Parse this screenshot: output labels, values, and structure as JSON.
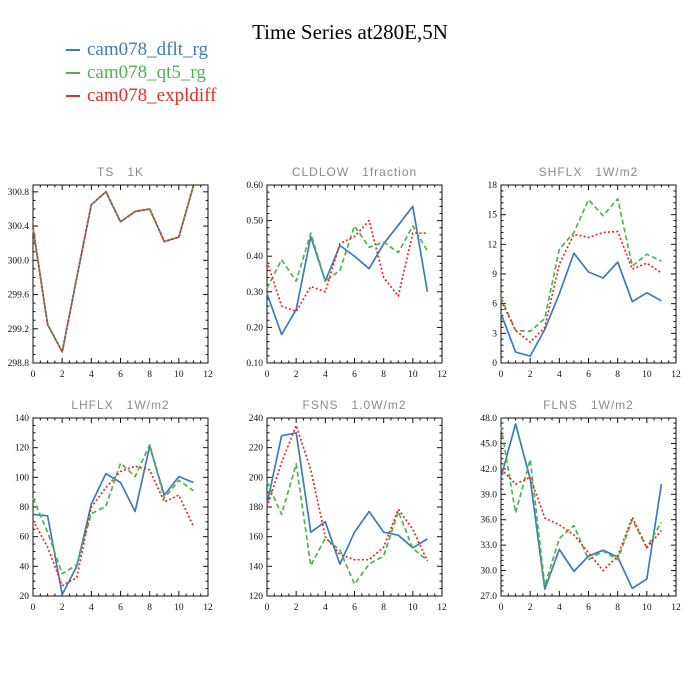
{
  "title": "Time Series at280E,5N",
  "colors": {
    "blue": "#3d7cb8",
    "green": "#4eb44e",
    "red": "#ec2a25"
  },
  "legend": {
    "items": [
      {
        "label": "cam078_dflt_rg",
        "color": "#3d7cb8"
      },
      {
        "label": "cam078_qt5_rg",
        "color": "#4eb44e"
      },
      {
        "label": "cam078_expldiff",
        "color": "#ec2a25"
      }
    ]
  },
  "chart_data": [
    {
      "type": "line",
      "title": "TS   1K",
      "var": "TS",
      "units": "1K",
      "x": [
        0,
        1,
        2,
        3,
        4,
        5,
        6,
        7,
        8,
        9,
        10,
        11
      ],
      "xlim": [
        0,
        12
      ],
      "xticks": [
        0,
        2,
        4,
        6,
        8,
        10,
        12
      ],
      "x_minor_step": 0.5,
      "ylim": [
        298.8,
        300.88
      ],
      "yticks": [
        298.8,
        299.2,
        299.6,
        300.0,
        300.4,
        300.8
      ],
      "y_minor_step": 0.1,
      "tick_decimals": 1,
      "grid": false,
      "legend_position": "top-left-of-page",
      "series": [
        {
          "name": "cam078_dflt_rg",
          "color": "#3d7cb8",
          "style": "solid",
          "values": [
            300.38,
            299.25,
            298.93,
            299.8,
            300.65,
            300.8,
            300.45,
            300.57,
            300.6,
            300.22,
            300.27,
            300.87
          ]
        },
        {
          "name": "cam078_qt5_rg",
          "color": "#4eb44e",
          "style": "dashed",
          "values": [
            300.38,
            299.25,
            298.93,
            299.8,
            300.65,
            300.8,
            300.45,
            300.57,
            300.6,
            300.22,
            300.27,
            300.87
          ]
        },
        {
          "name": "cam078_expldiff",
          "color": "#ec2a25",
          "style": "dotted",
          "values": [
            300.38,
            299.25,
            298.93,
            299.8,
            300.65,
            300.8,
            300.45,
            300.57,
            300.6,
            300.22,
            300.27,
            300.87
          ]
        }
      ]
    },
    {
      "type": "line",
      "title": "CLDLOW   1fraction",
      "var": "CLDLOW",
      "units": "1fraction",
      "x": [
        0,
        1,
        2,
        3,
        4,
        5,
        6,
        7,
        8,
        9,
        10,
        11
      ],
      "xlim": [
        0,
        12
      ],
      "xticks": [
        0,
        2,
        4,
        6,
        8,
        10,
        12
      ],
      "x_minor_step": 0.5,
      "ylim": [
        0.1,
        0.6
      ],
      "yticks": [
        0.1,
        0.2,
        0.3,
        0.4,
        0.5,
        0.6
      ],
      "y_minor_step": 0.02,
      "tick_decimals": 2,
      "grid": false,
      "series": [
        {
          "name": "cam078_dflt_rg",
          "color": "#3d7cb8",
          "style": "solid",
          "values": [
            0.295,
            0.18,
            0.25,
            0.455,
            0.33,
            0.43,
            0.4,
            0.365,
            0.435,
            0.487,
            0.54,
            0.3
          ]
        },
        {
          "name": "cam078_qt5_rg",
          "color": "#4eb44e",
          "style": "dashed",
          "values": [
            0.31,
            0.39,
            0.33,
            0.465,
            0.33,
            0.36,
            0.485,
            0.425,
            0.44,
            0.41,
            0.485,
            0.415
          ]
        },
        {
          "name": "cam078_expldiff",
          "color": "#ec2a25",
          "style": "dotted",
          "values": [
            0.385,
            0.26,
            0.245,
            0.315,
            0.3,
            0.435,
            0.455,
            0.5,
            0.34,
            0.288,
            0.465,
            0.465
          ]
        }
      ]
    },
    {
      "type": "line",
      "title": "SHFLX   1W/m2",
      "var": "SHFLX",
      "units": "1W/m2",
      "x": [
        0,
        1,
        2,
        3,
        4,
        5,
        6,
        7,
        8,
        9,
        10,
        11
      ],
      "xlim": [
        0,
        12
      ],
      "xticks": [
        0,
        2,
        4,
        6,
        8,
        10,
        12
      ],
      "x_minor_step": 0.5,
      "ylim": [
        0,
        18
      ],
      "yticks": [
        0,
        3,
        6,
        9,
        12,
        15,
        18
      ],
      "y_minor_step": 0.6,
      "tick_decimals": 0,
      "grid": false,
      "series": [
        {
          "name": "cam078_dflt_rg",
          "color": "#3d7cb8",
          "style": "solid",
          "values": [
            5.0,
            1.1,
            0.7,
            3.4,
            7.0,
            11.1,
            9.2,
            8.6,
            10.2,
            6.2,
            7.1,
            6.3
          ]
        },
        {
          "name": "cam078_qt5_rg",
          "color": "#4eb44e",
          "style": "dashed",
          "values": [
            6.6,
            3.3,
            3.2,
            4.5,
            11.5,
            13.2,
            16.5,
            14.9,
            16.6,
            9.8,
            11.0,
            10.3
          ]
        },
        {
          "name": "cam078_expldiff",
          "color": "#ec2a25",
          "style": "dotted",
          "values": [
            6.3,
            3.3,
            2.1,
            3.6,
            10.0,
            13.0,
            12.7,
            13.2,
            13.3,
            9.5,
            10.1,
            9.1
          ]
        }
      ]
    },
    {
      "type": "line",
      "title": "LHFLX   1W/m2",
      "var": "LHFLX",
      "units": "1W/m2",
      "x": [
        0,
        1,
        2,
        3,
        4,
        5,
        6,
        7,
        8,
        9,
        10,
        11
      ],
      "xlim": [
        0,
        12
      ],
      "xticks": [
        0,
        2,
        4,
        6,
        8,
        10,
        12
      ],
      "x_minor_step": 0.5,
      "ylim": [
        20,
        140
      ],
      "yticks": [
        20,
        40,
        60,
        80,
        100,
        120,
        140
      ],
      "y_minor_step": 5,
      "tick_decimals": 0,
      "grid": false,
      "series": [
        {
          "name": "cam078_dflt_rg",
          "color": "#3d7cb8",
          "style": "solid",
          "values": [
            75,
            74,
            21,
            40,
            82,
            102.5,
            96.5,
            77,
            121,
            88,
            100.5,
            96.5
          ]
        },
        {
          "name": "cam078_qt5_rg",
          "color": "#4eb44e",
          "style": "dashed",
          "values": [
            86,
            63,
            35,
            41,
            75.5,
            80.5,
            109.5,
            100.5,
            122,
            86,
            98,
            91
          ]
        },
        {
          "name": "cam078_expldiff",
          "color": "#ec2a25",
          "style": "dotted",
          "values": [
            71,
            53,
            27,
            32.5,
            80,
            93,
            104,
            107.5,
            105,
            83.5,
            88,
            67
          ]
        }
      ]
    },
    {
      "type": "line",
      "title": "FSNS   1.0W/m2",
      "var": "FSNS",
      "units": "1.0W/m2",
      "x": [
        0,
        1,
        2,
        3,
        4,
        5,
        6,
        7,
        8,
        9,
        10,
        11
      ],
      "xlim": [
        0,
        12
      ],
      "xticks": [
        0,
        2,
        4,
        6,
        8,
        10,
        12
      ],
      "x_minor_step": 0.5,
      "ylim": [
        120,
        240
      ],
      "yticks": [
        120,
        140,
        160,
        180,
        200,
        220,
        240
      ],
      "y_minor_step": 5,
      "tick_decimals": 0,
      "grid": false,
      "series": [
        {
          "name": "cam078_dflt_rg",
          "color": "#3d7cb8",
          "style": "solid",
          "values": [
            182,
            228,
            230,
            163,
            170,
            141.5,
            163,
            177,
            163,
            161,
            152.5,
            158.5
          ]
        },
        {
          "name": "cam078_qt5_rg",
          "color": "#4eb44e",
          "style": "dashed",
          "values": [
            197,
            175,
            209,
            140.5,
            159,
            151,
            128,
            141.5,
            147,
            177,
            152,
            144
          ]
        },
        {
          "name": "cam078_expldiff",
          "color": "#ec2a25",
          "style": "dotted",
          "values": [
            180,
            210,
            235,
            205,
            160,
            148,
            144.5,
            144.5,
            153,
            178.5,
            165,
            143.5
          ]
        }
      ]
    },
    {
      "type": "line",
      "title": "FLNS   1W/m2",
      "var": "FLNS",
      "units": "1W/m2",
      "x": [
        0,
        1,
        2,
        3,
        4,
        5,
        6,
        7,
        8,
        9,
        10,
        11
      ],
      "xlim": [
        0,
        12
      ],
      "xticks": [
        0,
        2,
        4,
        6,
        8,
        10,
        12
      ],
      "x_minor_step": 0.5,
      "ylim": [
        27,
        48
      ],
      "yticks": [
        27.0,
        30.0,
        33.0,
        36.0,
        39.0,
        42.0,
        45.0,
        48.0
      ],
      "y_minor_step": 0.6,
      "tick_decimals": 1,
      "grid": false,
      "series": [
        {
          "name": "cam078_dflt_rg",
          "color": "#3d7cb8",
          "style": "solid",
          "values": [
            41.0,
            47.3,
            40.8,
            27.8,
            32.5,
            29.9,
            31.7,
            32.4,
            31.6,
            27.9,
            29.0,
            40.2
          ]
        },
        {
          "name": "cam078_qt5_rg",
          "color": "#4eb44e",
          "style": "dashed",
          "values": [
            47.0,
            36.8,
            43.1,
            28.2,
            33.8,
            35.3,
            31.3,
            32.3,
            31.3,
            36.0,
            32.7,
            35.7
          ]
        },
        {
          "name": "cam078_expldiff",
          "color": "#ec2a25",
          "style": "dotted",
          "values": [
            42.0,
            40.2,
            41.0,
            36.2,
            35.4,
            34.2,
            32.1,
            30.0,
            31.7,
            36.3,
            32.7,
            34.7
          ]
        }
      ]
    }
  ]
}
